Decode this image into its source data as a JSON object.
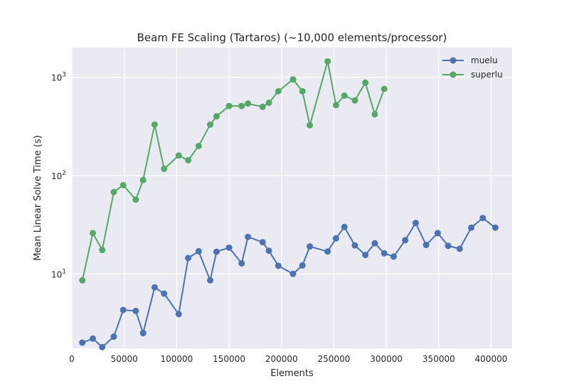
{
  "chart_data": {
    "type": "line",
    "title": "Beam FE Scaling (Tartaros) (~10,000 elements/processor)",
    "xlabel": "Elements",
    "ylabel": "Mean Linear Solve Time (s)",
    "xlim": [
      0,
      420000
    ],
    "ylim": [
      1.75,
      2000
    ],
    "yscale": "log",
    "xticks": [
      0,
      50000,
      100000,
      150000,
      200000,
      250000,
      300000,
      350000,
      400000
    ],
    "xtick_labels": [
      "0",
      "50000",
      "100000",
      "150000",
      "200000",
      "250000",
      "300000",
      "350000",
      "400000"
    ],
    "yticks": [
      10,
      100,
      1000
    ],
    "ytick_labels": [
      {
        "base": "10",
        "exp": "1"
      },
      {
        "base": "10",
        "exp": "2"
      },
      {
        "base": "10",
        "exp": "3"
      }
    ],
    "grid": true,
    "legend_position": "top-right",
    "series": [
      {
        "name": "muelu",
        "color": "#4c72b0",
        "x": [
          10000,
          20000,
          29000,
          40000,
          49000,
          61000,
          68000,
          79000,
          88000,
          102000,
          111000,
          121000,
          132000,
          138000,
          150000,
          162000,
          168000,
          182000,
          188000,
          197000,
          211000,
          220000,
          227000,
          244000,
          252000,
          260000,
          270000,
          280000,
          289000,
          298000,
          307000,
          318000,
          328000,
          338000,
          349000,
          359000,
          370000,
          381000,
          392000,
          404000
        ],
        "y": [
          2.0,
          2.2,
          1.8,
          2.3,
          4.3,
          4.2,
          2.5,
          7.3,
          6.3,
          3.9,
          14.5,
          17.0,
          8.6,
          16.8,
          18.5,
          12.8,
          23.8,
          21.0,
          17.2,
          12.1,
          10.0,
          12.2,
          19.0,
          16.9,
          23.0,
          30.0,
          19.5,
          15.6,
          20.5,
          16.2,
          15.0,
          22.0,
          33.0,
          19.7,
          26.0,
          19.3,
          18.0,
          29.5,
          37.0,
          29.5
        ]
      },
      {
        "name": "superlu",
        "color": "#55a868",
        "x": [
          10000,
          20000,
          29000,
          40000,
          49000,
          61000,
          68000,
          79000,
          88000,
          102000,
          111000,
          121000,
          132000,
          138000,
          150000,
          162000,
          168000,
          182000,
          188000,
          197000,
          211000,
          220000,
          227000,
          244000,
          252000,
          260000,
          270000,
          280000,
          289000,
          298000
        ],
        "y": [
          8.6,
          26.0,
          17.5,
          68.0,
          80.0,
          57.0,
          90.0,
          330.0,
          117.0,
          160.0,
          143.0,
          200.0,
          330.0,
          400.0,
          510.0,
          510.0,
          540.0,
          500.0,
          550.0,
          720.0,
          950.0,
          720.0,
          325.0,
          1450.0,
          520.0,
          650.0,
          580.0,
          880.0,
          420.0,
          760.0
        ]
      }
    ]
  }
}
